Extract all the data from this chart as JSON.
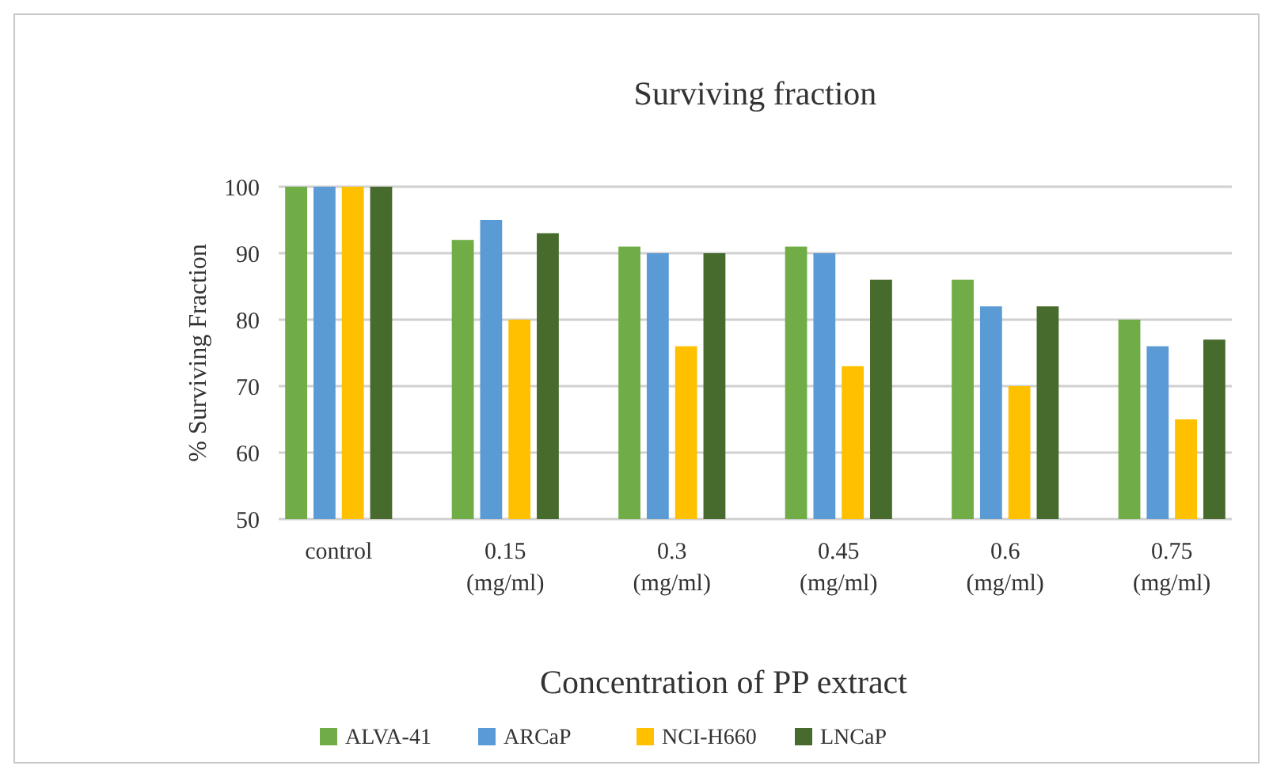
{
  "chart_data": {
    "type": "bar",
    "title": "Surviving fraction",
    "xlabel": "Concentration of PP extract",
    "ylabel": "% Surviving Fraction",
    "categories": [
      "control",
      "0.15 (mg/ml)",
      "0.3 (mg/ml)",
      "0.45 (mg/ml)",
      "0.6 (mg/ml)",
      "0.75 (mg/ml)"
    ],
    "series": [
      {
        "name": "ALVA-41",
        "color": "#70ad47",
        "values": [
          100,
          92,
          91,
          91,
          86,
          80
        ]
      },
      {
        "name": "ARCaP",
        "color": "#5b9bd5",
        "values": [
          100,
          95,
          90,
          90,
          82,
          76
        ]
      },
      {
        "name": "NCI-H660",
        "color": "#ffc000",
        "values": [
          100,
          80,
          76,
          73,
          70,
          65
        ]
      },
      {
        "name": "LNCaP",
        "color": "#466b2c",
        "values": [
          100,
          93,
          90,
          86,
          82,
          77
        ]
      }
    ],
    "ylim": [
      50,
      100
    ],
    "yticks": [
      50,
      60,
      70,
      80,
      90,
      100
    ],
    "grid": "y",
    "legend": "bottom"
  }
}
